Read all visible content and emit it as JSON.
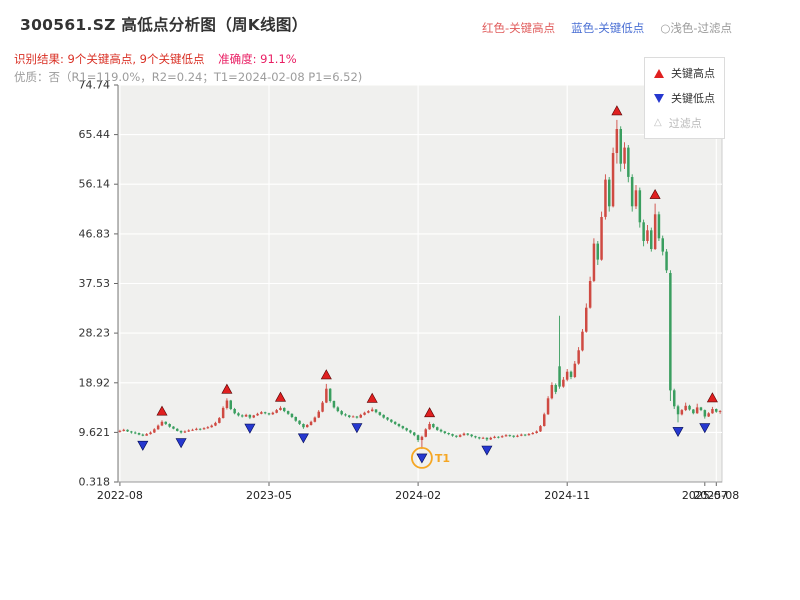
{
  "header": {
    "title": "300561.SZ 高低点分析图（周K线图）",
    "legend_high": "红色-关键高点",
    "legend_low": "蓝色-关键低点",
    "legend_filter": "○浅色-过滤点",
    "result_text": "识别结果: 9个关键高点, 9个关键低点",
    "accuracy_text": "准确度: 91.1%",
    "quality_text": "优质：否（R1=119.0%，R2=0.24；T1=2024-02-08 P1=6.52)"
  },
  "chart_legend": {
    "items": [
      {
        "label": "关键高点"
      },
      {
        "label": "关键低点"
      },
      {
        "label": "过滤点"
      }
    ]
  },
  "chart_data": {
    "type": "candlestick",
    "title": "300561.SZ 高低点分析图（周K线图）",
    "period": "weekly",
    "ylim": [
      0.318,
      74.74
    ],
    "y_ticks": [
      0.318,
      9.621,
      18.92,
      28.23,
      37.53,
      46.83,
      56.14,
      65.44,
      74.74
    ],
    "x_ticks": [
      {
        "i": 0,
        "label": "2022-08"
      },
      {
        "i": 39,
        "label": "2023-05"
      },
      {
        "i": 78,
        "label": "2024-02"
      },
      {
        "i": 117,
        "label": "2024-11"
      },
      {
        "i": 153,
        "label": "2025-07",
        "grid": false
      },
      {
        "i": 156,
        "label": "2025-08"
      }
    ],
    "colors": {
      "up": "#cf4a42",
      "down": "#3a9e5f",
      "key_high": "#e02020",
      "key_low": "#2638cf",
      "filter": "#c0c0c0",
      "t1": "#f5a623",
      "result_text": "#d93025",
      "accuracy_text": "#e91e63"
    },
    "candles": [
      [
        9.8,
        10.1,
        9.6,
        9.9
      ],
      [
        9.9,
        10.3,
        9.8,
        10.1
      ],
      [
        10.1,
        10.2,
        9.7,
        9.8
      ],
      [
        9.8,
        9.9,
        9.4,
        9.6
      ],
      [
        9.6,
        9.8,
        9.3,
        9.5
      ],
      [
        9.5,
        9.6,
        9.1,
        9.2
      ],
      [
        9.2,
        9.4,
        8.9,
        9.0
      ],
      [
        9.0,
        9.5,
        9.0,
        9.3
      ],
      [
        9.3,
        9.8,
        9.2,
        9.6
      ],
      [
        9.6,
        10.4,
        9.5,
        10.2
      ],
      [
        10.2,
        11.1,
        10.1,
        10.9
      ],
      [
        10.9,
        11.9,
        10.8,
        11.6
      ],
      [
        11.6,
        11.7,
        11.0,
        11.2
      ],
      [
        11.2,
        11.3,
        10.5,
        10.7
      ],
      [
        10.7,
        10.8,
        10.2,
        10.3
      ],
      [
        10.3,
        10.4,
        9.8,
        9.9
      ],
      [
        9.9,
        10.0,
        9.4,
        9.6
      ],
      [
        9.6,
        10.0,
        9.5,
        9.8
      ],
      [
        9.8,
        10.2,
        9.7,
        10.0
      ],
      [
        10.0,
        10.3,
        9.9,
        10.1
      ],
      [
        10.1,
        10.5,
        10.0,
        10.3
      ],
      [
        10.3,
        10.4,
        10.0,
        10.2
      ],
      [
        10.2,
        10.6,
        10.1,
        10.4
      ],
      [
        10.4,
        10.8,
        10.3,
        10.6
      ],
      [
        10.6,
        11.1,
        10.5,
        10.9
      ],
      [
        10.9,
        11.6,
        10.8,
        11.4
      ],
      [
        11.4,
        12.5,
        11.3,
        12.3
      ],
      [
        12.3,
        14.5,
        12.2,
        14.2
      ],
      [
        14.2,
        16.0,
        13.9,
        15.6
      ],
      [
        15.6,
        15.7,
        13.8,
        14.0
      ],
      [
        14.0,
        14.2,
        13.0,
        13.2
      ],
      [
        13.2,
        13.4,
        12.6,
        12.8
      ],
      [
        12.8,
        13.0,
        12.4,
        12.6
      ],
      [
        12.6,
        13.1,
        12.5,
        12.9
      ],
      [
        12.9,
        13.0,
        12.1,
        12.4
      ],
      [
        12.4,
        12.9,
        12.3,
        12.8
      ],
      [
        12.8,
        13.3,
        12.7,
        13.1
      ],
      [
        13.1,
        13.6,
        13.0,
        13.4
      ],
      [
        13.4,
        13.5,
        13.0,
        13.2
      ],
      [
        13.2,
        13.3,
        12.8,
        13.0
      ],
      [
        13.0,
        13.5,
        12.9,
        13.3
      ],
      [
        13.3,
        14.0,
        13.2,
        13.8
      ],
      [
        13.8,
        14.5,
        13.7,
        14.2
      ],
      [
        14.2,
        14.3,
        13.4,
        13.6
      ],
      [
        13.6,
        13.7,
        12.9,
        13.1
      ],
      [
        13.1,
        13.2,
        12.3,
        12.5
      ],
      [
        12.5,
        12.6,
        11.6,
        11.8
      ],
      [
        11.8,
        11.9,
        11.0,
        11.2
      ],
      [
        11.2,
        11.3,
        10.3,
        10.6
      ],
      [
        10.6,
        11.2,
        10.5,
        11.0
      ],
      [
        11.0,
        11.8,
        10.9,
        11.6
      ],
      [
        11.6,
        12.6,
        11.5,
        12.4
      ],
      [
        12.4,
        13.8,
        12.3,
        13.5
      ],
      [
        13.5,
        15.5,
        13.4,
        15.2
      ],
      [
        15.2,
        18.7,
        15.1,
        17.8
      ],
      [
        17.8,
        17.9,
        15.2,
        15.5
      ],
      [
        15.5,
        15.6,
        14.1,
        14.3
      ],
      [
        14.3,
        14.5,
        13.4,
        13.6
      ],
      [
        13.6,
        13.8,
        12.8,
        13.0
      ],
      [
        13.0,
        13.2,
        12.6,
        12.8
      ],
      [
        12.8,
        12.9,
        12.3,
        12.5
      ],
      [
        12.5,
        12.8,
        12.4,
        12.6
      ],
      [
        12.6,
        12.7,
        12.2,
        12.4
      ],
      [
        12.4,
        13.1,
        12.3,
        12.9
      ],
      [
        12.9,
        13.5,
        12.8,
        13.3
      ],
      [
        13.3,
        13.8,
        13.2,
        13.6
      ],
      [
        13.6,
        14.3,
        13.5,
        13.9
      ],
      [
        13.9,
        14.0,
        13.2,
        13.4
      ],
      [
        13.4,
        13.5,
        12.7,
        12.9
      ],
      [
        12.9,
        13.0,
        12.2,
        12.4
      ],
      [
        12.4,
        12.5,
        11.8,
        12.0
      ],
      [
        12.0,
        12.1,
        11.4,
        11.6
      ],
      [
        11.6,
        11.7,
        11.0,
        11.2
      ],
      [
        11.2,
        11.3,
        10.6,
        10.8
      ],
      [
        10.8,
        10.9,
        10.2,
        10.4
      ],
      [
        10.4,
        10.5,
        9.8,
        10.0
      ],
      [
        10.0,
        10.1,
        9.4,
        9.6
      ],
      [
        9.6,
        9.7,
        8.9,
        9.1
      ],
      [
        9.1,
        9.2,
        7.8,
        8.2
      ],
      [
        8.2,
        9.0,
        6.52,
        8.8
      ],
      [
        8.8,
        10.4,
        8.7,
        10.2
      ],
      [
        10.2,
        11.6,
        10.1,
        11.2
      ],
      [
        11.2,
        11.3,
        10.4,
        10.6
      ],
      [
        10.6,
        10.7,
        9.9,
        10.1
      ],
      [
        10.1,
        10.3,
        9.6,
        9.8
      ],
      [
        9.8,
        9.9,
        9.3,
        9.5
      ],
      [
        9.5,
        9.6,
        9.1,
        9.3
      ],
      [
        9.3,
        9.4,
        8.8,
        9.0
      ],
      [
        9.0,
        9.1,
        8.6,
        8.8
      ],
      [
        8.8,
        9.3,
        8.7,
        9.1
      ],
      [
        9.1,
        9.6,
        9.0,
        9.4
      ],
      [
        9.4,
        9.5,
        9.0,
        9.2
      ],
      [
        9.2,
        9.3,
        8.7,
        8.9
      ],
      [
        8.9,
        9.0,
        8.5,
        8.7
      ],
      [
        8.7,
        8.8,
        8.3,
        8.5
      ],
      [
        8.5,
        8.8,
        8.4,
        8.6
      ],
      [
        8.6,
        8.7,
        8.0,
        8.3
      ],
      [
        8.3,
        8.8,
        8.2,
        8.6
      ],
      [
        8.6,
        9.0,
        8.5,
        8.8
      ],
      [
        8.8,
        8.9,
        8.5,
        8.7
      ],
      [
        8.7,
        9.1,
        8.6,
        8.9
      ],
      [
        8.9,
        9.3,
        8.8,
        9.1
      ],
      [
        9.1,
        9.2,
        8.8,
        9.0
      ],
      [
        9.0,
        9.1,
        8.6,
        8.8
      ],
      [
        8.8,
        9.2,
        8.7,
        9.0
      ],
      [
        9.0,
        9.4,
        8.9,
        9.2
      ],
      [
        9.2,
        9.3,
        8.9,
        9.1
      ],
      [
        9.1,
        9.5,
        9.0,
        9.3
      ],
      [
        9.3,
        9.7,
        9.2,
        9.5
      ],
      [
        9.5,
        10.0,
        9.4,
        9.8
      ],
      [
        9.8,
        11.0,
        9.7,
        10.8
      ],
      [
        10.8,
        13.3,
        10.7,
        13.0
      ],
      [
        13.0,
        16.4,
        12.9,
        16.0
      ],
      [
        16.0,
        19.0,
        15.8,
        18.5
      ],
      [
        18.5,
        18.8,
        16.8,
        17.2
      ],
      [
        22.0,
        31.5,
        17.8,
        18.2
      ],
      [
        18.2,
        20.0,
        18.0,
        19.5
      ],
      [
        19.5,
        21.5,
        19.2,
        21.0
      ],
      [
        21.0,
        21.2,
        19.6,
        20.0
      ],
      [
        20.0,
        23.0,
        19.8,
        22.5
      ],
      [
        22.5,
        25.6,
        22.3,
        25.0
      ],
      [
        25.0,
        29.0,
        24.8,
        28.5
      ],
      [
        28.5,
        33.8,
        28.3,
        33.0
      ],
      [
        33.0,
        38.8,
        32.8,
        38.0
      ],
      [
        38.0,
        46.0,
        37.8,
        45.0
      ],
      [
        45.0,
        45.5,
        41.0,
        42.0
      ],
      [
        42.0,
        51.0,
        41.8,
        50.0
      ],
      [
        50.0,
        58.0,
        49.5,
        57.0
      ],
      [
        57.0,
        57.5,
        51.0,
        52.0
      ],
      [
        52.0,
        63.0,
        51.8,
        62.0
      ],
      [
        62.0,
        68.2,
        60.0,
        66.5
      ],
      [
        66.5,
        67.0,
        58.5,
        60.0
      ],
      [
        60.0,
        64.0,
        59.0,
        63.0
      ],
      [
        63.0,
        63.5,
        56.5,
        57.5
      ],
      [
        57.5,
        58.0,
        51.0,
        52.0
      ],
      [
        52.0,
        56.0,
        51.5,
        55.0
      ],
      [
        55.0,
        55.5,
        48.0,
        49.0
      ],
      [
        49.0,
        49.5,
        44.5,
        45.5
      ],
      [
        45.5,
        48.5,
        45.0,
        47.5
      ],
      [
        47.5,
        48.0,
        43.5,
        44.0
      ],
      [
        44.0,
        52.5,
        43.8,
        50.5
      ],
      [
        50.5,
        51.0,
        45.5,
        46.0
      ],
      [
        46.0,
        46.5,
        42.8,
        43.5
      ],
      [
        43.5,
        44.0,
        39.5,
        40.0
      ],
      [
        39.5,
        40.0,
        15.5,
        17.5
      ],
      [
        17.5,
        17.8,
        14.0,
        14.5
      ],
      [
        14.5,
        14.8,
        11.5,
        13.0
      ],
      [
        13.0,
        14.0,
        12.8,
        13.8
      ],
      [
        13.8,
        15.2,
        13.6,
        14.6
      ],
      [
        14.6,
        14.8,
        13.7,
        13.9
      ],
      [
        13.9,
        14.0,
        13.0,
        13.2
      ],
      [
        13.2,
        15.0,
        13.1,
        14.3
      ],
      [
        14.3,
        14.4,
        13.6,
        13.8
      ],
      [
        13.8,
        13.9,
        12.2,
        12.6
      ],
      [
        12.6,
        13.4,
        12.5,
        13.2
      ],
      [
        13.2,
        14.4,
        13.1,
        14.0
      ],
      [
        14.0,
        14.1,
        13.3,
        13.5
      ],
      [
        13.5,
        13.8,
        13.1,
        13.6
      ]
    ],
    "key_highs": [
      {
        "i": 11,
        "price": 11.9
      },
      {
        "i": 28,
        "price": 16.0
      },
      {
        "i": 42,
        "price": 14.5
      },
      {
        "i": 54,
        "price": 18.7
      },
      {
        "i": 66,
        "price": 14.3
      },
      {
        "i": 81,
        "price": 11.6
      },
      {
        "i": 130,
        "price": 68.2
      },
      {
        "i": 140,
        "price": 52.5
      },
      {
        "i": 155,
        "price": 14.4
      }
    ],
    "key_lows": [
      {
        "i": 6,
        "price": 8.9
      },
      {
        "i": 16,
        "price": 9.4
      },
      {
        "i": 34,
        "price": 12.1
      },
      {
        "i": 48,
        "price": 10.3
      },
      {
        "i": 62,
        "price": 12.2
      },
      {
        "i": 79,
        "price": 6.52
      },
      {
        "i": 96,
        "price": 8.0
      },
      {
        "i": 146,
        "price": 11.5
      },
      {
        "i": 153,
        "price": 12.2
      }
    ],
    "t1_annotation": {
      "i": 79,
      "price": 6.52,
      "label": "T1"
    }
  }
}
